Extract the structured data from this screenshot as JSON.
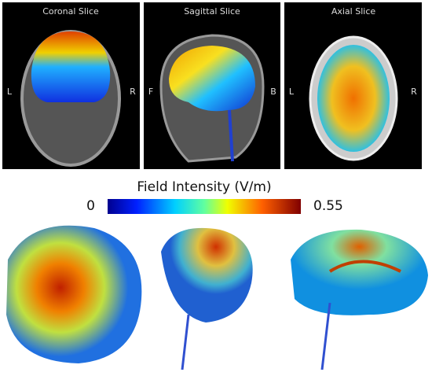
{
  "panels": [
    {
      "title": "Coronal Slice",
      "left": "L",
      "right": "R"
    },
    {
      "title": "Sagittal Slice",
      "left": "F",
      "right": "B"
    },
    {
      "title": "Axial Slice",
      "left": "L",
      "right": "R"
    }
  ],
  "colorbar": {
    "title": "Field Intensity (V/m)",
    "min": 0,
    "max": 0.55
  }
}
